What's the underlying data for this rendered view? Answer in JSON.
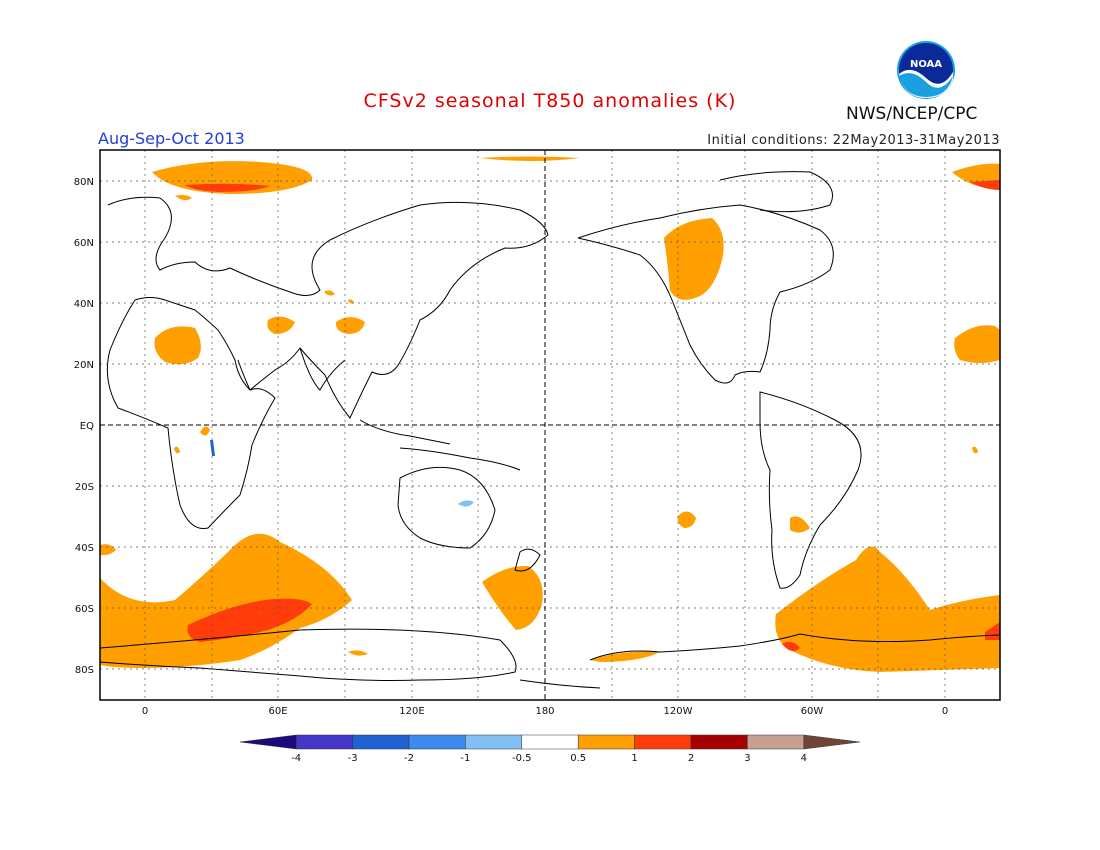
{
  "title": "CFSv2 seasonal T850 anomalies (K)",
  "season": "Aug-Sep-Oct 2013",
  "initial_conditions": "Initial conditions: 22May2013-31May2013",
  "agency": "NWS/NCEP/CPC",
  "logo_text": "NOAA",
  "lat_labels": [
    "80N",
    "60N",
    "40N",
    "20N",
    "EQ",
    "20S",
    "40S",
    "60S",
    "80S"
  ],
  "lon_labels": [
    "0",
    "60E",
    "120E",
    "180",
    "120W",
    "60W",
    "0"
  ],
  "colorbar": {
    "labels": [
      "-4",
      "-3",
      "-2",
      "-1",
      "-0.5",
      "0.5",
      "1",
      "2",
      "3",
      "4"
    ],
    "colors": [
      "#1c0a7c",
      "#4636c9",
      "#1e63d1",
      "#3c8cf0",
      "#82bff2",
      "#ffffff",
      "#ff9f00",
      "#ff3c0a",
      "#a80000",
      "#c8a090",
      "#6e4636"
    ]
  },
  "colors": {
    "anomaly_0_5_to_1": "#ff9f00",
    "anomaly_1_to_2": "#ff3c0a",
    "anomaly_neg_0_5_to_neg_1": "#82bff2",
    "title": "#e00000",
    "season": "#2040d8"
  }
}
